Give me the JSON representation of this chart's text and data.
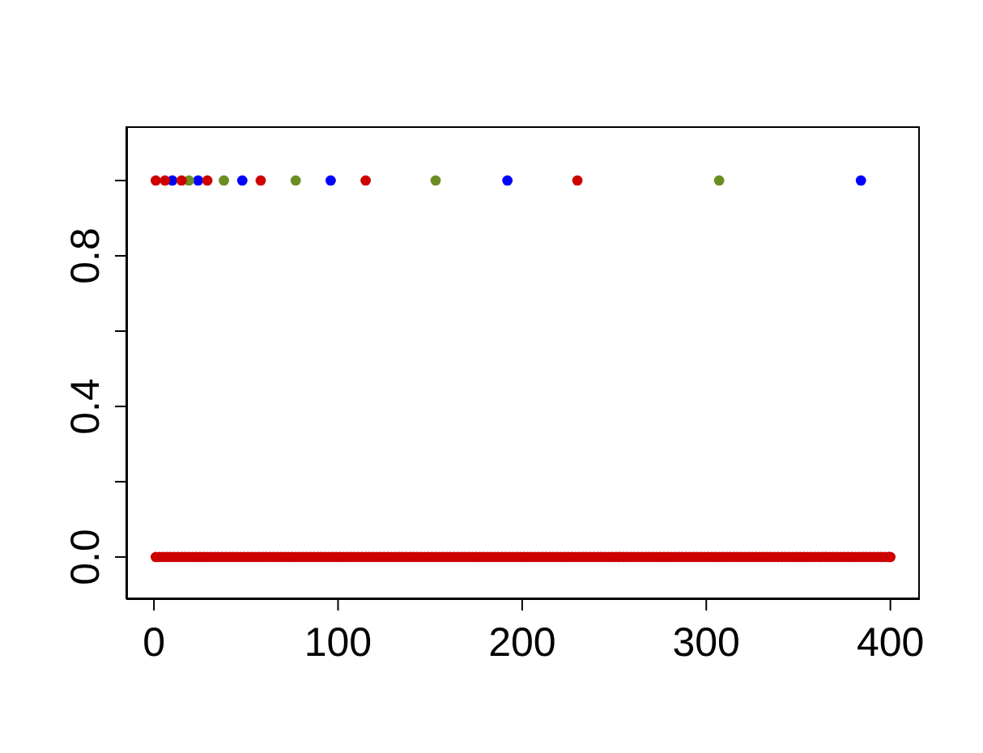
{
  "chart_data": {
    "type": "scatter",
    "marker": "circle",
    "grid": false,
    "legend": false,
    "xlim": [
      -15,
      416
    ],
    "xticks": [
      0,
      100,
      200,
      300,
      400
    ],
    "ylim": [
      -0.112,
      1.144
    ],
    "yticks": [
      {
        "value": 0,
        "label": "0.0"
      },
      {
        "value": 0.2,
        "label": null
      },
      {
        "value": 0.4,
        "label": "0.4"
      },
      {
        "value": 0.6,
        "label": null
      },
      {
        "value": 0.8,
        "label": "0.8"
      },
      {
        "value": 1,
        "label": null
      }
    ],
    "series": [
      {
        "color": "#cd0000",
        "x": [
          1,
          3,
          5,
          7,
          9,
          11,
          13,
          15,
          17,
          19,
          21,
          23,
          25,
          27,
          29,
          31,
          33,
          35,
          37,
          39,
          41,
          43,
          45,
          47,
          49,
          51,
          53,
          55,
          57,
          59,
          61,
          63,
          65,
          67,
          69,
          71,
          73,
          75,
          77,
          79,
          81,
          83,
          85,
          87,
          89,
          91,
          93,
          95,
          97,
          99,
          101,
          103,
          105,
          107,
          109,
          111,
          113,
          115,
          117,
          119,
          121,
          123,
          125,
          127,
          129,
          131,
          133,
          135,
          137,
          139,
          141,
          143,
          145,
          147,
          149,
          151,
          153,
          155,
          157,
          159,
          161,
          163,
          165,
          167,
          169,
          171,
          173,
          175,
          177,
          179,
          181,
          183,
          185,
          187,
          189,
          191,
          193,
          195,
          197,
          199,
          201,
          203,
          205,
          207,
          209,
          211,
          213,
          215,
          217,
          219,
          221,
          223,
          225,
          227,
          229,
          231,
          233,
          235,
          237,
          239,
          241,
          243,
          245,
          247,
          249,
          251,
          253,
          255,
          257,
          259,
          261,
          263,
          265,
          267,
          269,
          271,
          273,
          275,
          277,
          279,
          281,
          283,
          285,
          287,
          289,
          291,
          293,
          295,
          297,
          299,
          301,
          303,
          305,
          307,
          309,
          311,
          313,
          315,
          317,
          319,
          321,
          323,
          325,
          327,
          329,
          331,
          333,
          335,
          337,
          339,
          341,
          343,
          345,
          347,
          349,
          351,
          353,
          355,
          357,
          359,
          361,
          363,
          365,
          367,
          369,
          371,
          373,
          375,
          377,
          379,
          381,
          383,
          385,
          387,
          389,
          391,
          393,
          395,
          397,
          399,
          400
        ],
        "values": [
          0,
          0,
          0,
          0,
          0,
          0,
          0,
          0,
          0,
          0,
          0,
          0,
          0,
          0,
          0,
          0,
          0,
          0,
          0,
          0,
          0,
          0,
          0,
          0,
          0,
          0,
          0,
          0,
          0,
          0,
          0,
          0,
          0,
          0,
          0,
          0,
          0,
          0,
          0,
          0,
          0,
          0,
          0,
          0,
          0,
          0,
          0,
          0,
          0,
          0,
          0,
          0,
          0,
          0,
          0,
          0,
          0,
          0,
          0,
          0,
          0,
          0,
          0,
          0,
          0,
          0,
          0,
          0,
          0,
          0,
          0,
          0,
          0,
          0,
          0,
          0,
          0,
          0,
          0,
          0,
          0,
          0,
          0,
          0,
          0,
          0,
          0,
          0,
          0,
          0,
          0,
          0,
          0,
          0,
          0,
          0,
          0,
          0,
          0,
          0,
          0,
          0,
          0,
          0,
          0,
          0,
          0,
          0,
          0,
          0,
          0,
          0,
          0,
          0,
          0,
          0,
          0,
          0,
          0,
          0,
          0,
          0,
          0,
          0,
          0,
          0,
          0,
          0,
          0,
          0,
          0,
          0,
          0,
          0,
          0,
          0,
          0,
          0,
          0,
          0,
          0,
          0,
          0,
          0,
          0,
          0,
          0,
          0,
          0,
          0,
          0,
          0,
          0,
          0,
          0,
          0,
          0,
          0,
          0,
          0,
          0,
          0,
          0,
          0,
          0,
          0,
          0,
          0,
          0,
          0,
          0,
          0,
          0,
          0,
          0,
          0,
          0,
          0,
          0,
          0,
          0,
          0,
          0,
          0,
          0,
          0,
          0,
          0,
          0,
          0,
          0,
          0,
          0,
          0,
          0,
          0,
          0,
          0,
          0,
          0,
          0
        ]
      },
      {
        "color": "#0000ff",
        "x": [
          10,
          24,
          48,
          96,
          192,
          384
        ],
        "values": [
          1,
          1,
          1,
          1,
          1,
          1
        ]
      },
      {
        "color": "#6b8e23",
        "x": [
          19,
          38,
          77,
          153,
          307
        ],
        "values": [
          1,
          1,
          1,
          1,
          1
        ]
      },
      {
        "color": "#cd0000",
        "x": [
          1,
          6,
          15,
          29,
          58,
          115,
          230
        ],
        "values": [
          1,
          1,
          1,
          1,
          1,
          1,
          1
        ]
      }
    ]
  }
}
